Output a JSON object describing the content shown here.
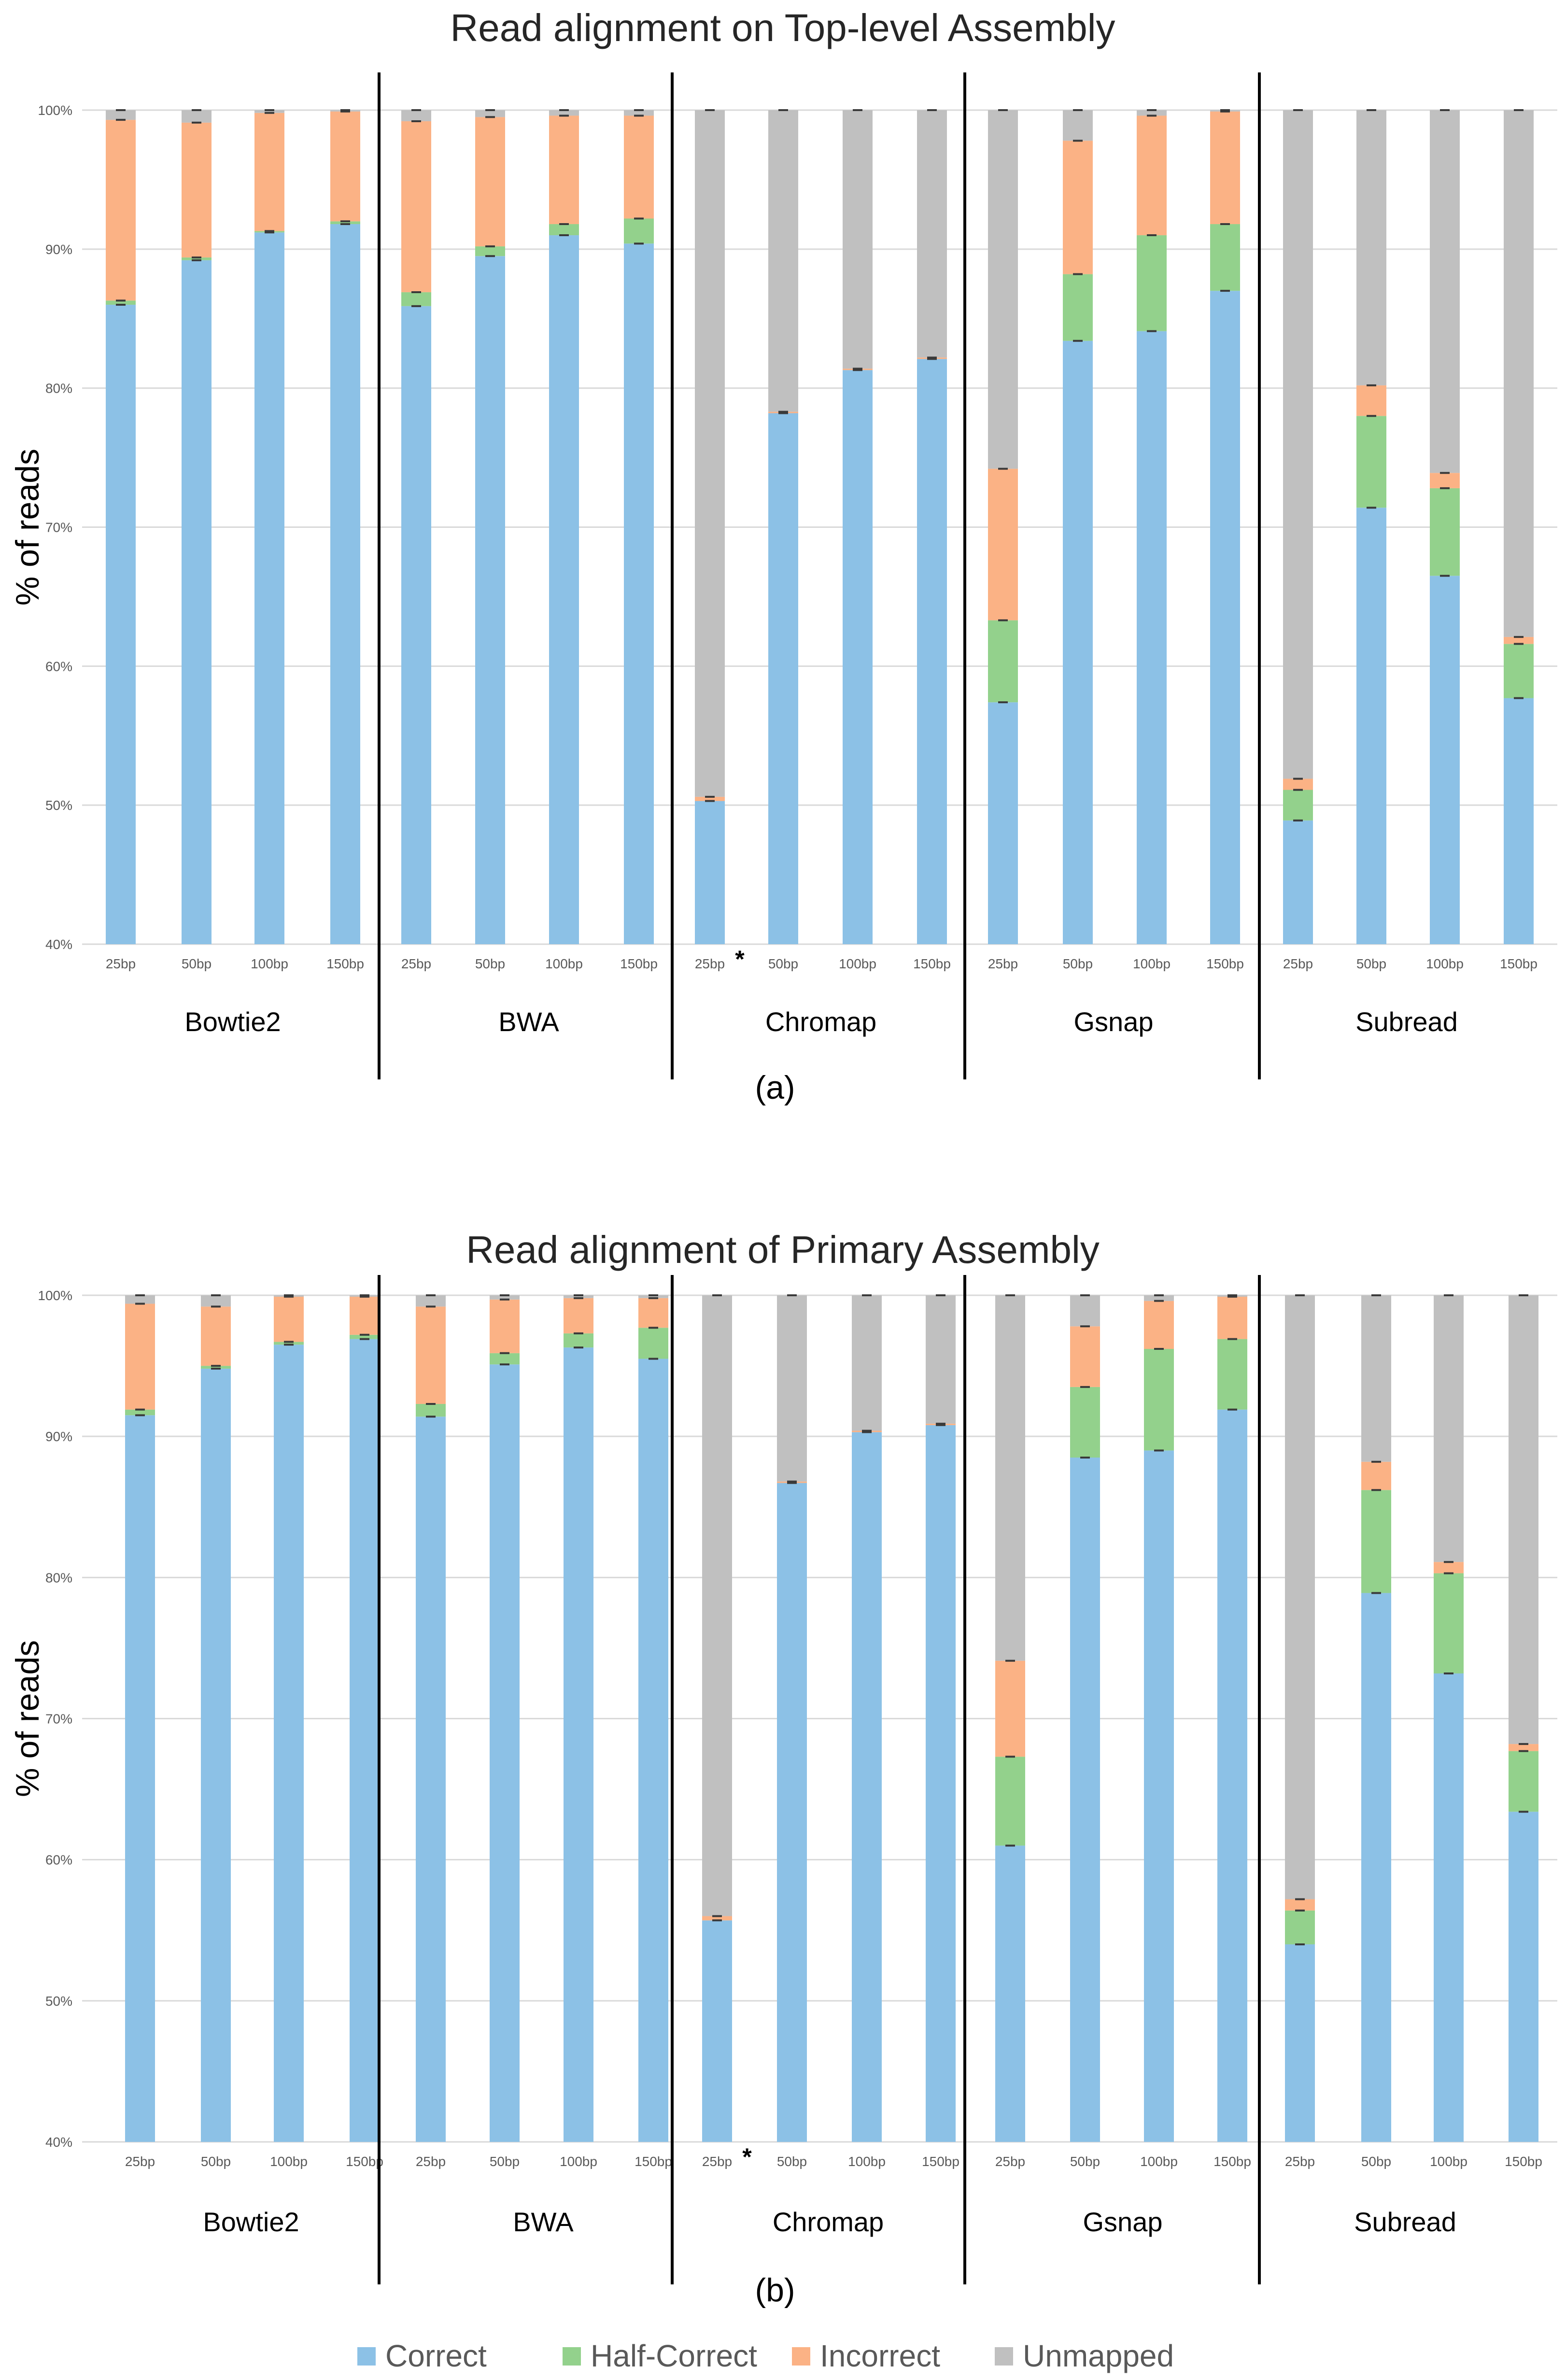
{
  "colors": {
    "Correct": "#8cc1e6",
    "Half-Correct": "#93d18c",
    "Incorrect": "#fbb285",
    "Unmapped": "#c0c0c0"
  },
  "legend": [
    "Correct",
    "Half-Correct",
    "Incorrect",
    "Unmapped"
  ],
  "chart_data": [
    {
      "type": "bar",
      "stacked": true,
      "panel_label": "(a)",
      "title": "Read alignment on Top-level Assembly",
      "ylabel": "% of reads",
      "ylim": [
        40,
        100
      ],
      "yticks": [
        "40%",
        "50%",
        "60%",
        "70%",
        "80%",
        "90%",
        "100%"
      ],
      "groups": [
        {
          "name": "Bowtie2",
          "bars": [
            {
              "label": "25bp",
              "Correct": 86.0,
              "Half-Correct": 0.3,
              "Incorrect": 13.0,
              "Unmapped": 0.7
            },
            {
              "label": "50bp",
              "Correct": 89.2,
              "Half-Correct": 0.2,
              "Incorrect": 9.7,
              "Unmapped": 0.9
            },
            {
              "label": "100bp",
              "Correct": 91.2,
              "Half-Correct": 0.1,
              "Incorrect": 8.5,
              "Unmapped": 0.2
            },
            {
              "label": "150bp",
              "Correct": 91.8,
              "Half-Correct": 0.2,
              "Incorrect": 7.9,
              "Unmapped": 0.1
            }
          ]
        },
        {
          "name": "BWA",
          "bars": [
            {
              "label": "25bp",
              "Correct": 85.9,
              "Half-Correct": 1.0,
              "Incorrect": 12.3,
              "Unmapped": 0.8
            },
            {
              "label": "50bp",
              "Correct": 89.5,
              "Half-Correct": 0.7,
              "Incorrect": 9.3,
              "Unmapped": 0.5
            },
            {
              "label": "100bp",
              "Correct": 91.0,
              "Half-Correct": 0.8,
              "Incorrect": 7.8,
              "Unmapped": 0.4
            },
            {
              "label": "150bp",
              "Correct": 90.4,
              "Half-Correct": 1.8,
              "Incorrect": 7.4,
              "Unmapped": 0.4
            }
          ]
        },
        {
          "name": "Chromap",
          "asterisk_on": "25bp",
          "bars": [
            {
              "label": "25bp",
              "Correct": 50.3,
              "Half-Correct": 0.0,
              "Incorrect": 0.3,
              "Unmapped": 49.4
            },
            {
              "label": "50bp",
              "Correct": 78.2,
              "Half-Correct": 0.0,
              "Incorrect": 0.1,
              "Unmapped": 21.7
            },
            {
              "label": "100bp",
              "Correct": 81.3,
              "Half-Correct": 0.0,
              "Incorrect": 0.1,
              "Unmapped": 18.6
            },
            {
              "label": "150bp",
              "Correct": 82.1,
              "Half-Correct": 0.0,
              "Incorrect": 0.1,
              "Unmapped": 17.8
            }
          ]
        },
        {
          "name": "Gsnap",
          "bars": [
            {
              "label": "25bp",
              "Correct": 57.4,
              "Half-Correct": 5.9,
              "Incorrect": 10.9,
              "Unmapped": 25.8
            },
            {
              "label": "50bp",
              "Correct": 83.4,
              "Half-Correct": 4.8,
              "Incorrect": 9.6,
              "Unmapped": 2.2
            },
            {
              "label": "100bp",
              "Correct": 84.1,
              "Half-Correct": 6.9,
              "Incorrect": 8.6,
              "Unmapped": 0.4
            },
            {
              "label": "150bp",
              "Correct": 87.0,
              "Half-Correct": 4.8,
              "Incorrect": 8.1,
              "Unmapped": 0.1
            }
          ]
        },
        {
          "name": "Subread",
          "bars": [
            {
              "label": "25bp",
              "Correct": 48.9,
              "Half-Correct": 2.2,
              "Incorrect": 0.8,
              "Unmapped": 48.1
            },
            {
              "label": "50bp",
              "Correct": 71.4,
              "Half-Correct": 6.6,
              "Incorrect": 2.2,
              "Unmapped": 19.8
            },
            {
              "label": "100bp",
              "Correct": 66.5,
              "Half-Correct": 6.3,
              "Incorrect": 1.1,
              "Unmapped": 26.1
            },
            {
              "label": "150bp",
              "Correct": 57.7,
              "Half-Correct": 3.9,
              "Incorrect": 0.5,
              "Unmapped": 37.9
            }
          ]
        }
      ]
    },
    {
      "type": "bar",
      "stacked": true,
      "panel_label": "(b)",
      "title": "Read alignment of Primary Assembly",
      "ylabel": "% of reads",
      "ylim": [
        40,
        100
      ],
      "yticks": [
        "40%",
        "50%",
        "60%",
        "70%",
        "80%",
        "90%",
        "100%"
      ],
      "groups": [
        {
          "name": "Bowtie2",
          "bars": [
            {
              "label": "25bp",
              "Correct": 91.5,
              "Half-Correct": 0.4,
              "Incorrect": 7.5,
              "Unmapped": 0.6
            },
            {
              "label": "50bp",
              "Correct": 94.8,
              "Half-Correct": 0.2,
              "Incorrect": 4.2,
              "Unmapped": 0.8
            },
            {
              "label": "100bp",
              "Correct": 96.5,
              "Half-Correct": 0.2,
              "Incorrect": 3.2,
              "Unmapped": 0.1
            },
            {
              "label": "150bp",
              "Correct": 96.9,
              "Half-Correct": 0.3,
              "Incorrect": 2.7,
              "Unmapped": 0.1
            }
          ]
        },
        {
          "name": "BWA",
          "bars": [
            {
              "label": "25bp",
              "Correct": 91.4,
              "Half-Correct": 0.9,
              "Incorrect": 6.9,
              "Unmapped": 0.8
            },
            {
              "label": "50bp",
              "Correct": 95.1,
              "Half-Correct": 0.8,
              "Incorrect": 3.8,
              "Unmapped": 0.3
            },
            {
              "label": "100bp",
              "Correct": 96.3,
              "Half-Correct": 1.0,
              "Incorrect": 2.5,
              "Unmapped": 0.2
            },
            {
              "label": "150bp",
              "Correct": 95.5,
              "Half-Correct": 2.2,
              "Incorrect": 2.1,
              "Unmapped": 0.2
            }
          ]
        },
        {
          "name": "Chromap",
          "asterisk_on": "25bp",
          "bars": [
            {
              "label": "25bp",
              "Correct": 55.7,
              "Half-Correct": 0.0,
              "Incorrect": 0.3,
              "Unmapped": 44.0
            },
            {
              "label": "50bp",
              "Correct": 86.7,
              "Half-Correct": 0.0,
              "Incorrect": 0.1,
              "Unmapped": 13.2
            },
            {
              "label": "100bp",
              "Correct": 90.3,
              "Half-Correct": 0.0,
              "Incorrect": 0.1,
              "Unmapped": 9.6
            },
            {
              "label": "150bp",
              "Correct": 90.8,
              "Half-Correct": 0.0,
              "Incorrect": 0.1,
              "Unmapped": 9.1
            }
          ]
        },
        {
          "name": "Gsnap",
          "bars": [
            {
              "label": "25bp",
              "Correct": 61.0,
              "Half-Correct": 6.3,
              "Incorrect": 6.8,
              "Unmapped": 25.9
            },
            {
              "label": "50bp",
              "Correct": 88.5,
              "Half-Correct": 5.0,
              "Incorrect": 4.3,
              "Unmapped": 2.2
            },
            {
              "label": "100bp",
              "Correct": 89.0,
              "Half-Correct": 7.2,
              "Incorrect": 3.4,
              "Unmapped": 0.4
            },
            {
              "label": "150bp",
              "Correct": 91.9,
              "Half-Correct": 5.0,
              "Incorrect": 3.0,
              "Unmapped": 0.1
            }
          ]
        },
        {
          "name": "Subread",
          "bars": [
            {
              "label": "25bp",
              "Correct": 54.0,
              "Half-Correct": 2.4,
              "Incorrect": 0.8,
              "Unmapped": 42.8
            },
            {
              "label": "50bp",
              "Correct": 78.9,
              "Half-Correct": 7.3,
              "Incorrect": 2.0,
              "Unmapped": 11.8
            },
            {
              "label": "100bp",
              "Correct": 73.2,
              "Half-Correct": 7.1,
              "Incorrect": 0.8,
              "Unmapped": 18.9
            },
            {
              "label": "150bp",
              "Correct": 63.4,
              "Half-Correct": 4.3,
              "Incorrect": 0.5,
              "Unmapped": 31.8
            }
          ]
        }
      ]
    }
  ]
}
